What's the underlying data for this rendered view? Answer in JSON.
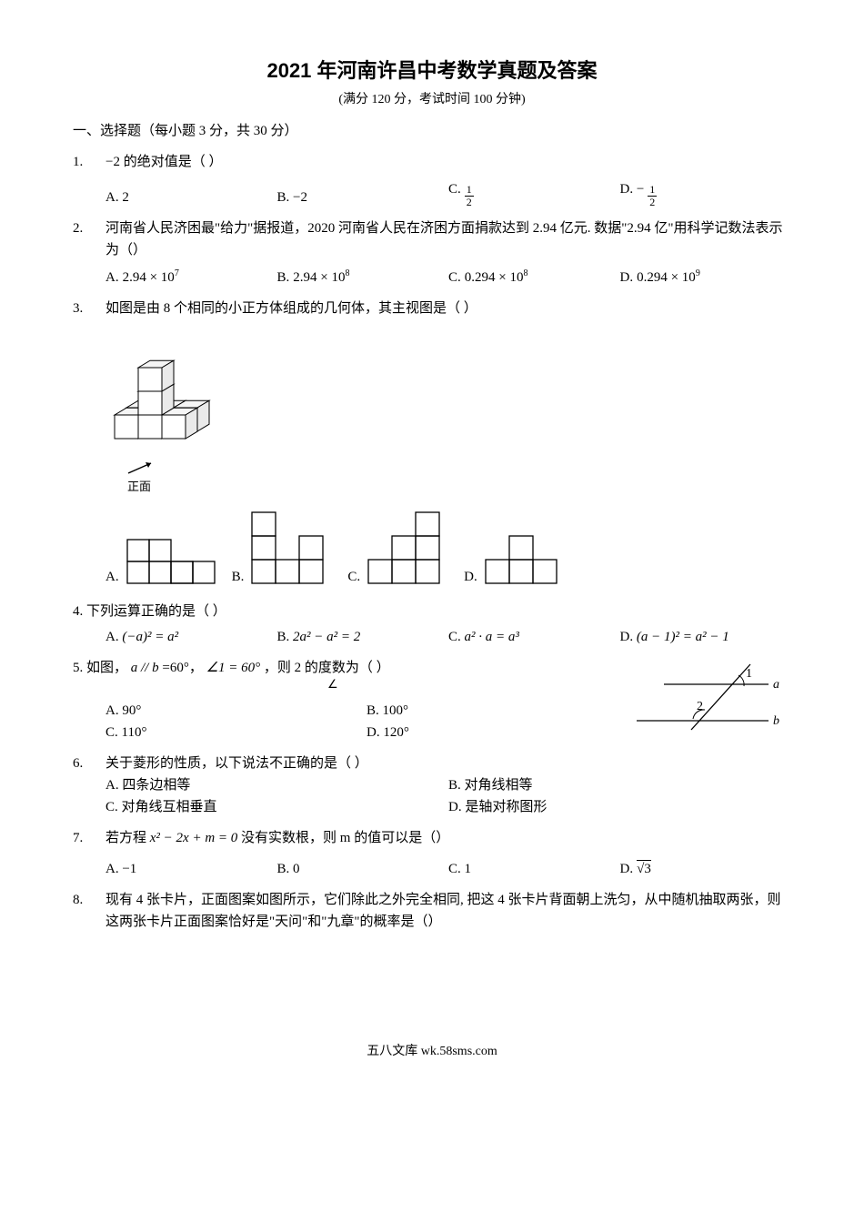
{
  "header": {
    "title": "2021 年河南许昌中考数学真题及答案",
    "subtitle": "(满分 120 分，考试时间 100 分钟)"
  },
  "section1": "一、选择题（每小题 3 分，共 30 分）",
  "q1": {
    "num": "1.",
    "stem": "−2 的绝对值是（  ）",
    "A": "A.  2",
    "B": "B.  −2",
    "C_label": "C.",
    "C_num": "1",
    "C_den": "2",
    "D_label": "D.  −",
    "D_num": "1",
    "D_den": "2"
  },
  "q2": {
    "num": "2.",
    "stem": "河南省人民济困最\"给力\"据报道，2020 河南省人民在济困方面捐款达到 2.94 亿元. 数据\"2.94 亿\"用科学记数法表示为（）",
    "A_label": "A.",
    "A_expr": "2.94 × 10",
    "A_exp": "7",
    "B_label": "B.",
    "B_expr": "2.94 × 10",
    "B_exp": "8",
    "C_label": "C.",
    "C_expr": "0.294 × 10",
    "C_exp": "8",
    "D_label": "D.",
    "D_expr": "0.294 × 10",
    "D_exp": "9"
  },
  "q3": {
    "num": "3.",
    "stem": "如图是由 8 个相同的小正方体组成的几何体，其主视图是（  ）",
    "front_label": "正面",
    "iso": {
      "stroke": "#000000",
      "fill": "#ffffff",
      "fill_top": "#f0f0f0"
    },
    "grid_stroke": "#000000",
    "A": "A.",
    "B": "B.",
    "C": "C.",
    "D": "D.",
    "optA": {
      "cols": 4,
      "rows": 2,
      "cells": [
        [
          1,
          2
        ],
        [
          0,
          0
        ],
        [
          0,
          1
        ],
        [
          1,
          0
        ],
        [
          1,
          1
        ],
        [
          1,
          2
        ],
        [
          1,
          3
        ]
      ]
    },
    "optB": {
      "cols": 3,
      "rows": 3,
      "cells": [
        [
          0,
          0
        ],
        [
          1,
          0
        ],
        [
          1,
          2
        ],
        [
          2,
          0
        ],
        [
          2,
          1
        ],
        [
          2,
          2
        ]
      ]
    },
    "optC": {
      "cols": 3,
      "rows": 3,
      "cells": [
        [
          0,
          2
        ],
        [
          1,
          1
        ],
        [
          1,
          2
        ],
        [
          2,
          0
        ],
        [
          2,
          1
        ],
        [
          2,
          2
        ]
      ]
    },
    "optD": {
      "cols": 3,
      "rows": 2,
      "cells": [
        [
          0,
          1
        ],
        [
          1,
          0
        ],
        [
          1,
          1
        ],
        [
          1,
          2
        ]
      ]
    }
  },
  "q4": {
    "num": "4.",
    "stem": "下列运算正确的是（    ）",
    "A_label": "A.",
    "A_expr": "(−a)² = a²",
    "B_label": "B.",
    "B_expr": "2a² − a² = 2",
    "C_label": "C.",
    "C_expr": "a² · a = a³",
    "D_label": "D.",
    "D_expr": "(a − 1)² = a² − 1"
  },
  "q5": {
    "num": "5.",
    "stem_pre": "如图，",
    "stem_ab": "a // b",
    "stem_eq": "=60°，",
    "stem_ang": "∠1 = 60°",
    "stem_post": "，则   2 的度数为（  ）",
    "stem_measure": "∠",
    "A": "A. 90°",
    "B": "B. 100°",
    "C": "C. 110°",
    "D": "D. 120°",
    "fig": {
      "stroke": "#000000",
      "label_a": "a",
      "label_b": "b",
      "label_1": "1",
      "label_2": "2"
    }
  },
  "q6": {
    "num": "6.",
    "stem": "关于菱形的性质，以下说法不正确的是（    ）",
    "A": "A. 四条边相等",
    "B": "B. 对角线相等",
    "C": "C. 对角线互相垂直",
    "D": "D. 是轴对称图形"
  },
  "q7": {
    "num": "7.",
    "stem_pre": "若方程 ",
    "stem_eq": "x² − 2x + m = 0",
    "stem_post": " 没有实数根，则 m 的值可以是（）",
    "A": "A.  −1",
    "B": "B.  0",
    "C": "C.  1",
    "D_label": "D.",
    "D_sqrt": "√3"
  },
  "q8": {
    "num": "8.",
    "stem": "现有 4 张卡片，正面图案如图所示，它们除此之外完全相同, 把这 4 张卡片背面朝上洗匀，从中随机抽取两张，则这两张卡片正面图案恰好是\"天问\"和\"九章\"的概率是（）"
  },
  "footer": "五八文库 wk.58sms.com"
}
